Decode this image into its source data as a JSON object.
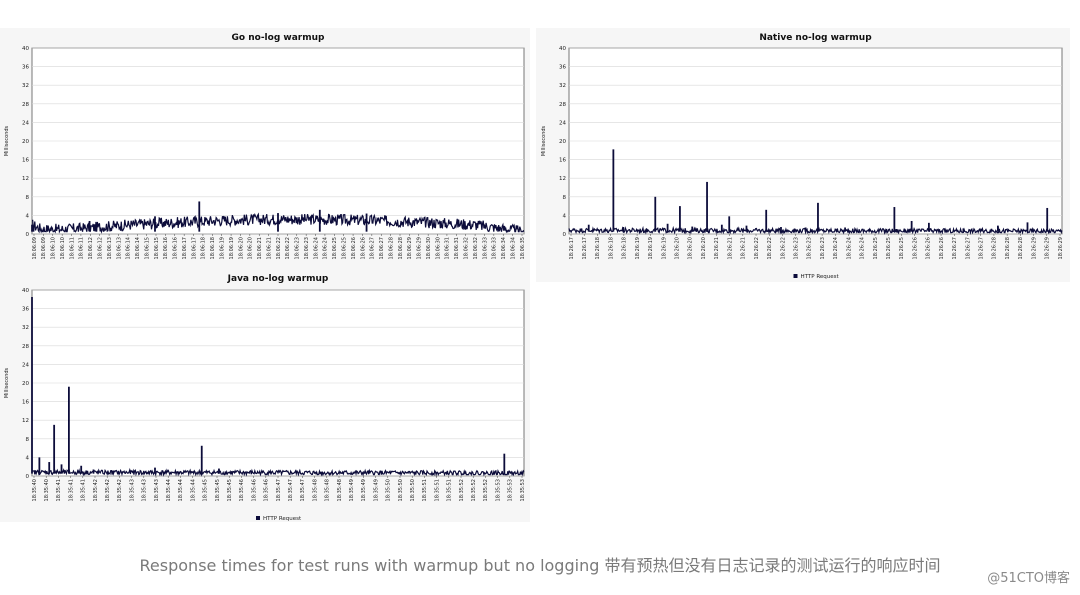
{
  "caption": "Response times for test runs with warmup but no logging 带有预热但没有日志记录的测试运行的响应时间",
  "watermark": "@51CTO博客",
  "chart_data": [
    {
      "id": "go",
      "type": "line",
      "title": "Go no-log warmup",
      "ylabel": "Milliseconds",
      "ylim": [
        0,
        40
      ],
      "yticks": [
        0,
        4,
        8,
        12,
        16,
        20,
        24,
        28,
        32,
        36,
        40
      ],
      "grid": true,
      "legend": null,
      "series_color": "#0c0c3a",
      "x_ticks": [
        "18:06:09",
        "18:06:09",
        "18:06:10",
        "18:06:10",
        "18:06:11",
        "18:06:11",
        "18:06:12",
        "18:06:12",
        "18:06:13",
        "18:06:13",
        "18:06:14",
        "18:06:14",
        "18:06:15",
        "18:06:15",
        "18:06:16",
        "18:06:16",
        "18:06:17",
        "18:06:17",
        "18:06:18",
        "18:06:18",
        "18:06:19",
        "18:06:19",
        "18:06:20",
        "18:06:20",
        "18:06:21",
        "18:06:21",
        "18:06:22",
        "18:06:22",
        "18:06:23",
        "18:06:23",
        "18:06:24",
        "18:06:24",
        "18:06:25",
        "18:06:25",
        "18:06:26",
        "18:06:26",
        "18:06:27",
        "18:06:27",
        "18:06:28",
        "18:06:28",
        "18:06:29",
        "18:06:29",
        "18:06:30",
        "18:06:30",
        "18:06:31",
        "18:06:31",
        "18:06:32",
        "18:06:32",
        "18:06:33",
        "18:06:33",
        "18:06:34",
        "18:06:34",
        "18:06:35"
      ],
      "profile": [
        [
          0,
          2
        ],
        [
          0.02,
          1
        ],
        [
          0.05,
          1
        ],
        [
          0.1,
          1.2
        ],
        [
          0.2,
          2
        ],
        [
          0.3,
          2.5
        ],
        [
          0.4,
          3
        ],
        [
          0.5,
          3.2
        ],
        [
          0.6,
          3.1
        ],
        [
          0.7,
          2.9
        ],
        [
          0.8,
          2.5
        ],
        [
          0.9,
          2
        ],
        [
          0.95,
          1.2
        ],
        [
          1,
          0.5
        ]
      ],
      "noise": 1.2,
      "baseline": 0.5,
      "spikes": [
        [
          0.0,
          2
        ],
        [
          0.003,
          1.5
        ],
        [
          0.34,
          7
        ],
        [
          0.117,
          2.8
        ],
        [
          0.5,
          4.5
        ],
        [
          0.585,
          5.2
        ],
        [
          0.25,
          3.8
        ],
        [
          0.68,
          4.4
        ]
      ]
    },
    {
      "id": "native",
      "type": "line",
      "title": "Native no-log warmup",
      "ylabel": "Milliseconds",
      "ylim": [
        0,
        40
      ],
      "yticks": [
        0,
        4,
        8,
        12,
        16,
        20,
        24,
        28,
        32,
        36,
        40
      ],
      "grid": true,
      "legend": "HTTP Request",
      "series_color": "#0c0c3a",
      "x_ticks": [
        "18:26:17",
        "18:26:17",
        "18:26:18",
        "18:26:18",
        "18:26:18",
        "18:26:19",
        "18:26:19",
        "18:26:19",
        "18:26:20",
        "18:26:20",
        "18:26:20",
        "18:26:21",
        "18:26:21",
        "18:26:21",
        "18:26:22",
        "18:26:22",
        "18:26:22",
        "18:26:23",
        "18:26:23",
        "18:26:23",
        "18:26:24",
        "18:26:24",
        "18:26:24",
        "18:26:25",
        "18:26:25",
        "18:26:25",
        "18:26:26",
        "18:26:26",
        "18:26:26",
        "18:26:27",
        "18:26:27",
        "18:26:27",
        "18:26:28",
        "18:26:28",
        "18:26:28",
        "18:26:29",
        "18:26:29",
        "18:26:29"
      ],
      "profile": [
        [
          0,
          0.8
        ],
        [
          0.5,
          0.7
        ],
        [
          1,
          0.6
        ]
      ],
      "noise": 0.5,
      "baseline": 0.3,
      "spikes": [
        [
          0.0,
          0.5
        ],
        [
          0.04,
          2
        ],
        [
          0.09,
          18.2
        ],
        [
          0.11,
          1.5
        ],
        [
          0.175,
          8
        ],
        [
          0.2,
          2.2
        ],
        [
          0.225,
          6
        ],
        [
          0.25,
          1.6
        ],
        [
          0.28,
          11.2
        ],
        [
          0.31,
          2
        ],
        [
          0.325,
          3.8
        ],
        [
          0.36,
          1.8
        ],
        [
          0.4,
          5.2
        ],
        [
          0.43,
          1.5
        ],
        [
          0.48,
          1.4
        ],
        [
          0.505,
          6.7
        ],
        [
          0.56,
          1.4
        ],
        [
          0.61,
          1.1
        ],
        [
          0.66,
          5.8
        ],
        [
          0.695,
          2.8
        ],
        [
          0.73,
          2.4
        ],
        [
          0.8,
          1.2
        ],
        [
          0.87,
          1.8
        ],
        [
          0.93,
          2.5
        ],
        [
          0.97,
          5.6
        ],
        [
          1.08,
          1.2
        ],
        [
          1.05,
          1.2
        ],
        [
          0.87,
          1.5
        ]
      ]
    },
    {
      "id": "java",
      "type": "line",
      "title": "Java no-log warmup",
      "ylabel": "Milliseconds",
      "ylim": [
        0,
        40
      ],
      "yticks": [
        0,
        4,
        8,
        12,
        16,
        20,
        24,
        28,
        32,
        36,
        40
      ],
      "grid": true,
      "legend": "HTTP Request",
      "series_color": "#0c0c3a",
      "x_ticks": [
        "18:35:40",
        "18:35:40",
        "18:35:41",
        "18:35:41",
        "18:35:41",
        "18:35:42",
        "18:35:42",
        "18:35:42",
        "18:35:43",
        "18:35:43",
        "18:35:43",
        "18:35:44",
        "18:35:44",
        "18:35:44",
        "18:35:45",
        "18:35:45",
        "18:35:45",
        "18:35:46",
        "18:35:46",
        "18:35:46",
        "18:35:47",
        "18:35:47",
        "18:35:47",
        "18:35:48",
        "18:35:48",
        "18:35:48",
        "18:35:49",
        "18:35:49",
        "18:35:49",
        "18:35:50",
        "18:35:50",
        "18:35:50",
        "18:35:51",
        "18:35:51",
        "18:35:51",
        "18:35:52",
        "18:35:52",
        "18:35:52",
        "18:35:53",
        "18:35:53",
        "18:35:53"
      ],
      "profile": [
        [
          0,
          0.8
        ],
        [
          0.5,
          0.7
        ],
        [
          1,
          0.6
        ]
      ],
      "noise": 0.5,
      "baseline": 0.3,
      "spikes": [
        [
          0.0,
          38.5
        ],
        [
          0.015,
          4
        ],
        [
          0.035,
          3
        ],
        [
          0.045,
          11
        ],
        [
          0.06,
          2.5
        ],
        [
          0.075,
          19.2
        ],
        [
          0.1,
          2.2
        ],
        [
          0.125,
          1.4
        ],
        [
          0.25,
          1.8
        ],
        [
          0.345,
          6.5
        ],
        [
          0.38,
          1.6
        ],
        [
          0.96,
          4.8
        ],
        [
          0.88,
          0.9
        ]
      ]
    }
  ]
}
